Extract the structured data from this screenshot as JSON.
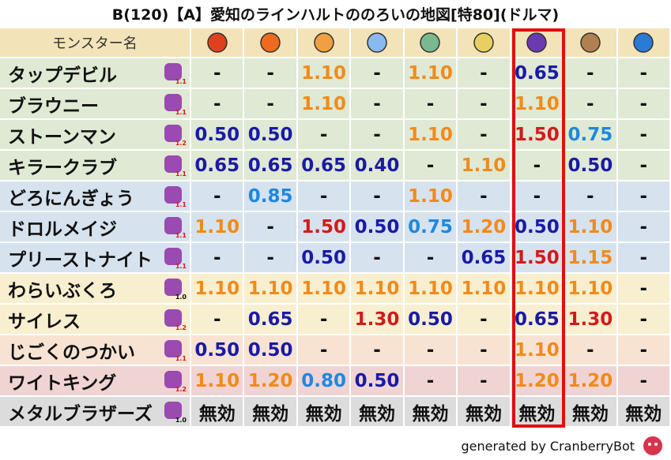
{
  "title": "B(120)【A】愛知のラインハルトののろいの地図[特80](ドルマ)",
  "header": "モンスター名",
  "rows": [
    {
      "name": "タップデビル",
      "level": "1.1",
      "cells": [
        "-",
        "-",
        "1.10",
        "-",
        "1.10",
        "-",
        "0.65",
        "-",
        "-"
      ]
    },
    {
      "name": "ブラウニー",
      "level": "1.1",
      "cells": [
        "-",
        "-",
        "1.10",
        "-",
        "-",
        "-",
        "1.10",
        "-",
        "-"
      ]
    },
    {
      "name": "ストーンマン",
      "level": "1.2",
      "cells": [
        "0.50",
        "0.50",
        "-",
        "-",
        "1.10",
        "-",
        "1.50",
        "0.75",
        "-"
      ]
    },
    {
      "name": "キラークラブ",
      "level": "1.1",
      "cells": [
        "0.65",
        "0.65",
        "0.65",
        "0.40",
        "-",
        "1.10",
        "-",
        "0.50",
        "-"
      ]
    },
    {
      "name": "どろにんぎょう",
      "level": "1.1",
      "cells": [
        "-",
        "0.85",
        "-",
        "-",
        "1.10",
        "-",
        "-",
        "-",
        "-"
      ]
    },
    {
      "name": "ドロルメイジ",
      "level": "1.1",
      "cells": [
        "1.10",
        "-",
        "1.50",
        "0.50",
        "0.75",
        "1.20",
        "0.50",
        "1.10",
        "-"
      ]
    },
    {
      "name": "プリーストナイト",
      "level": "1.1",
      "cells": [
        "-",
        "-",
        "0.50",
        "-",
        "-",
        "0.65",
        "1.50",
        "1.15",
        "-"
      ]
    },
    {
      "name": "わらいぶくろ",
      "level": "1.0",
      "cells": [
        "1.10",
        "1.10",
        "1.10",
        "1.10",
        "1.10",
        "1.10",
        "1.10",
        "1.10",
        "-"
      ]
    },
    {
      "name": "サイレス",
      "level": "1.2",
      "cells": [
        "-",
        "0.65",
        "-",
        "1.30",
        "0.50",
        "-",
        "0.65",
        "1.30",
        "-"
      ]
    },
    {
      "name": "じごくのつかい",
      "level": "1.1",
      "cells": [
        "0.50",
        "0.50",
        "-",
        "-",
        "-",
        "-",
        "1.10",
        "-",
        "-"
      ]
    },
    {
      "name": "ワイトキング",
      "level": "1.2",
      "cells": [
        "1.10",
        "1.20",
        "0.80",
        "0.50",
        "-",
        "-",
        "1.20",
        "1.20",
        "-"
      ]
    },
    {
      "name": "メタルブラザーズ",
      "level": "1.0",
      "cells": [
        "無効",
        "無効",
        "無効",
        "無効",
        "無効",
        "無効",
        "無効",
        "無効",
        "無効"
      ]
    }
  ],
  "footer": "generated by CranberryBot"
}
